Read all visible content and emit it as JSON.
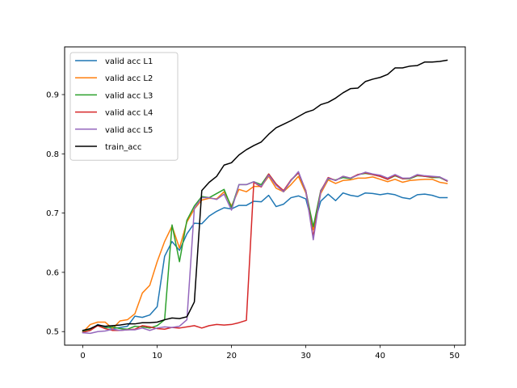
{
  "chart_data": {
    "type": "line",
    "title": "",
    "xlabel": "",
    "ylabel": "",
    "xlim": [
      -2.45,
      51.45
    ],
    "ylim": [
      0.4771,
      0.9805
    ],
    "xticks": [
      0,
      10,
      20,
      30,
      40,
      50
    ],
    "yticks": [
      0.5,
      0.6,
      0.7,
      0.8,
      0.9
    ],
    "grid": false,
    "legend": "upper-left",
    "x": [
      0,
      1,
      2,
      3,
      4,
      5,
      6,
      7,
      8,
      9,
      10,
      11,
      12,
      13,
      14,
      15,
      16,
      17,
      18,
      19,
      20,
      21,
      22,
      23,
      24,
      25,
      26,
      27,
      28,
      29,
      30,
      31,
      32,
      33,
      34,
      35,
      36,
      37,
      38,
      39,
      40,
      41,
      42,
      43,
      44,
      45,
      46,
      47,
      48,
      49
    ],
    "series": [
      {
        "name": "valid acc L1",
        "color": "#1f77b4",
        "values": [
          0.499,
          0.502,
          0.512,
          0.508,
          0.505,
          0.507,
          0.509,
          0.526,
          0.524,
          0.528,
          0.542,
          0.627,
          0.652,
          0.637,
          0.665,
          0.683,
          0.682,
          0.695,
          0.703,
          0.709,
          0.707,
          0.713,
          0.713,
          0.72,
          0.719,
          0.73,
          0.711,
          0.715,
          0.726,
          0.729,
          0.724,
          0.676,
          0.72,
          0.732,
          0.721,
          0.734,
          0.73,
          0.728,
          0.734,
          0.733,
          0.731,
          0.733,
          0.731,
          0.726,
          0.724,
          0.731,
          0.732,
          0.73,
          0.726,
          0.726
        ]
      },
      {
        "name": "valid acc L2",
        "color": "#ff7f0e",
        "values": [
          0.499,
          0.512,
          0.516,
          0.516,
          0.505,
          0.518,
          0.52,
          0.53,
          0.565,
          0.578,
          0.618,
          0.652,
          0.678,
          0.641,
          0.685,
          0.707,
          0.722,
          0.725,
          0.724,
          0.736,
          0.712,
          0.74,
          0.736,
          0.745,
          0.745,
          0.762,
          0.742,
          0.736,
          0.748,
          0.762,
          0.734,
          0.672,
          0.733,
          0.756,
          0.75,
          0.755,
          0.756,
          0.759,
          0.759,
          0.761,
          0.757,
          0.753,
          0.757,
          0.752,
          0.755,
          0.756,
          0.757,
          0.757,
          0.752,
          0.75
        ]
      },
      {
        "name": "valid acc L3",
        "color": "#2ca02c",
        "values": [
          0.5,
          0.504,
          0.51,
          0.506,
          0.508,
          0.505,
          0.504,
          0.509,
          0.508,
          0.506,
          0.51,
          0.52,
          0.68,
          0.618,
          0.688,
          0.712,
          0.728,
          0.726,
          0.733,
          0.74,
          0.709,
          0.748,
          0.748,
          0.753,
          0.748,
          0.766,
          0.749,
          0.736,
          0.755,
          0.768,
          0.737,
          0.677,
          0.738,
          0.758,
          0.756,
          0.76,
          0.758,
          0.765,
          0.767,
          0.765,
          0.762,
          0.757,
          0.763,
          0.758,
          0.758,
          0.763,
          0.762,
          0.76,
          0.76,
          0.754
        ]
      },
      {
        "name": "valid acc L4",
        "color": "#d62728",
        "values": [
          0.499,
          0.502,
          0.51,
          0.505,
          0.502,
          0.502,
          0.503,
          0.504,
          0.51,
          0.508,
          0.505,
          0.504,
          0.507,
          0.506,
          0.508,
          0.51,
          0.506,
          0.51,
          0.512,
          0.511,
          0.512,
          0.515,
          0.519,
          0.752,
          0.744,
          0.766,
          0.749,
          0.738,
          0.756,
          0.768,
          0.738,
          0.66,
          0.737,
          0.76,
          0.755,
          0.762,
          0.759,
          0.765,
          0.768,
          0.765,
          0.762,
          0.757,
          0.764,
          0.758,
          0.759,
          0.764,
          0.762,
          0.761,
          0.761,
          0.754
        ]
      },
      {
        "name": "valid acc L5",
        "color": "#9467bd",
        "values": [
          0.498,
          0.497,
          0.5,
          0.501,
          0.504,
          0.502,
          0.503,
          0.503,
          0.506,
          0.502,
          0.506,
          0.508,
          0.507,
          0.509,
          0.52,
          0.708,
          0.726,
          0.726,
          0.723,
          0.732,
          0.705,
          0.748,
          0.748,
          0.753,
          0.745,
          0.764,
          0.747,
          0.736,
          0.755,
          0.77,
          0.737,
          0.655,
          0.736,
          0.759,
          0.755,
          0.762,
          0.759,
          0.764,
          0.769,
          0.766,
          0.764,
          0.759,
          0.765,
          0.759,
          0.759,
          0.765,
          0.763,
          0.762,
          0.761,
          0.755
        ]
      },
      {
        "name": "train_acc",
        "color": "#000000",
        "values": [
          0.502,
          0.505,
          0.511,
          0.509,
          0.51,
          0.511,
          0.513,
          0.513,
          0.515,
          0.515,
          0.516,
          0.52,
          0.523,
          0.522,
          0.525,
          0.55,
          0.738,
          0.752,
          0.762,
          0.781,
          0.785,
          0.798,
          0.807,
          0.814,
          0.82,
          0.833,
          0.844,
          0.85,
          0.856,
          0.863,
          0.87,
          0.874,
          0.883,
          0.887,
          0.894,
          0.903,
          0.91,
          0.911,
          0.922,
          0.926,
          0.929,
          0.934,
          0.945,
          0.945,
          0.948,
          0.949,
          0.955,
          0.955,
          0.956,
          0.958
        ]
      }
    ]
  }
}
